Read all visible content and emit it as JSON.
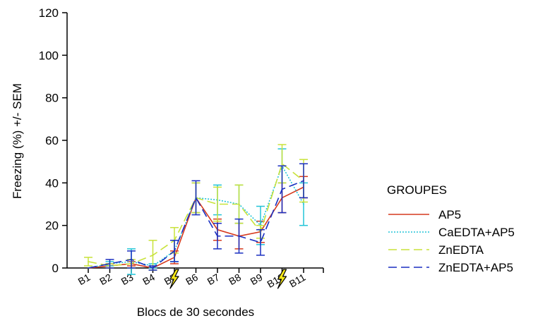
{
  "chart_data": {
    "type": "line",
    "title": "",
    "xlabel": "Blocs de 30 secondes",
    "ylabel": "Freezing (%) +/- SEM",
    "ylim": [
      0,
      120
    ],
    "yticks": [
      0,
      20,
      40,
      60,
      80,
      100,
      120
    ],
    "categories": [
      "B1",
      "B2",
      "B3",
      "B4",
      "B5",
      "B6",
      "B7",
      "B8",
      "B9",
      "B10",
      "B11"
    ],
    "shock_marks_at": [
      "B5",
      "B10"
    ],
    "legend": {
      "title": "GROUPES",
      "placement": "right"
    },
    "grid": false,
    "series": [
      {
        "name": "AP5",
        "color": "#d63a1e",
        "dash": "solid",
        "values": [
          0,
          1,
          2,
          0,
          5,
          33,
          18,
          15,
          17,
          33,
          38
        ],
        "sem": [
          0,
          1,
          1,
          0,
          3,
          7,
          5,
          6,
          5,
          7,
          5
        ]
      },
      {
        "name": "CaEDTA+AP5",
        "color": "#22c4d8",
        "dash": "dot",
        "values": [
          0,
          2,
          3,
          1,
          8,
          33,
          32,
          30,
          20,
          48,
          30
        ],
        "sem": [
          0,
          1,
          6,
          1,
          5,
          7,
          7,
          9,
          9,
          8,
          10
        ]
      },
      {
        "name": "ZnEDTA",
        "color": "#c8e23a",
        "dash": "dash",
        "values": [
          3,
          1,
          2,
          6,
          13,
          33,
          30,
          30,
          17,
          49,
          41
        ],
        "sem": [
          2,
          1,
          2,
          7,
          6,
          7,
          8,
          9,
          3,
          9,
          10
        ]
      },
      {
        "name": "ZnEDTA+AP5",
        "color": "#1a2fc0",
        "dash": "dash",
        "values": [
          0,
          2,
          4,
          0,
          8,
          33,
          15,
          15,
          12,
          37,
          41
        ],
        "sem": [
          0,
          2,
          4,
          1,
          5,
          8,
          6,
          8,
          6,
          11,
          8
        ]
      }
    ]
  }
}
